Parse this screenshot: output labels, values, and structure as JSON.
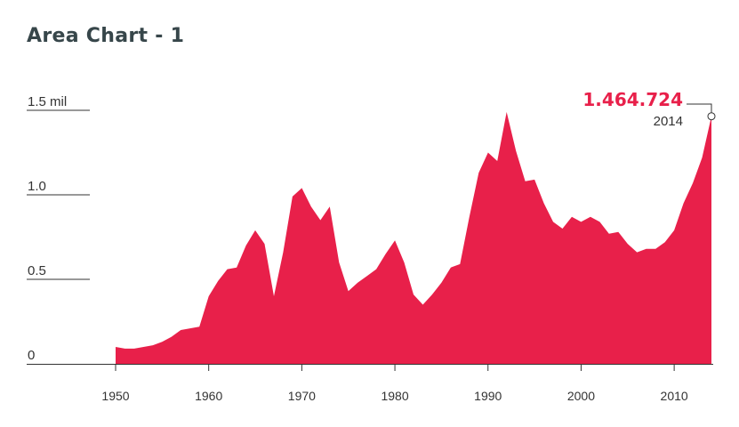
{
  "chart_data": {
    "type": "area",
    "title": "Area Chart - 1",
    "xlabel": "",
    "ylabel": "",
    "xlim": [
      1940,
      2015
    ],
    "ylim": [
      0,
      1.5
    ],
    "color": "#e8204a",
    "y_ticks": [
      {
        "value": 0,
        "label": "0"
      },
      {
        "value": 0.5,
        "label": "0.5"
      },
      {
        "value": 1.0,
        "label": "1.0"
      },
      {
        "value": 1.5,
        "label": "1.5 mil"
      }
    ],
    "x_ticks": [
      1950,
      1960,
      1970,
      1980,
      1990,
      2000,
      2010
    ],
    "x_tick_labels": [
      "1950",
      "1960",
      "1970",
      "1980",
      "1990",
      "2000",
      "2010"
    ],
    "x": [
      1950,
      1951,
      1952,
      1953,
      1954,
      1955,
      1956,
      1957,
      1958,
      1959,
      1960,
      1961,
      1962,
      1963,
      1964,
      1965,
      1966,
      1967,
      1968,
      1969,
      1970,
      1971,
      1972,
      1973,
      1974,
      1975,
      1976,
      1977,
      1978,
      1979,
      1980,
      1981,
      1982,
      1983,
      1984,
      1985,
      1986,
      1987,
      1988,
      1989,
      1990,
      1991,
      1992,
      1993,
      1994,
      1995,
      1996,
      1997,
      1998,
      1999,
      2000,
      2001,
      2002,
      2003,
      2004,
      2005,
      2006,
      2007,
      2008,
      2009,
      2010,
      2011,
      2012,
      2013,
      2014
    ],
    "values": [
      0.1,
      0.09,
      0.09,
      0.1,
      0.11,
      0.13,
      0.16,
      0.2,
      0.21,
      0.22,
      0.4,
      0.49,
      0.56,
      0.57,
      0.7,
      0.79,
      0.71,
      0.4,
      0.66,
      0.99,
      1.04,
      0.93,
      0.85,
      0.93,
      0.6,
      0.43,
      0.48,
      0.52,
      0.56,
      0.65,
      0.73,
      0.6,
      0.41,
      0.35,
      0.41,
      0.48,
      0.57,
      0.59,
      0.87,
      1.13,
      1.25,
      1.2,
      1.49,
      1.26,
      1.08,
      1.09,
      0.95,
      0.84,
      0.8,
      0.87,
      0.84,
      0.87,
      0.84,
      0.77,
      0.78,
      0.71,
      0.66,
      0.68,
      0.68,
      0.72,
      0.79,
      0.95,
      1.07,
      1.22,
      1.464724
    ],
    "callout": {
      "value_label": "1.464.724",
      "year_label": "2014"
    }
  }
}
